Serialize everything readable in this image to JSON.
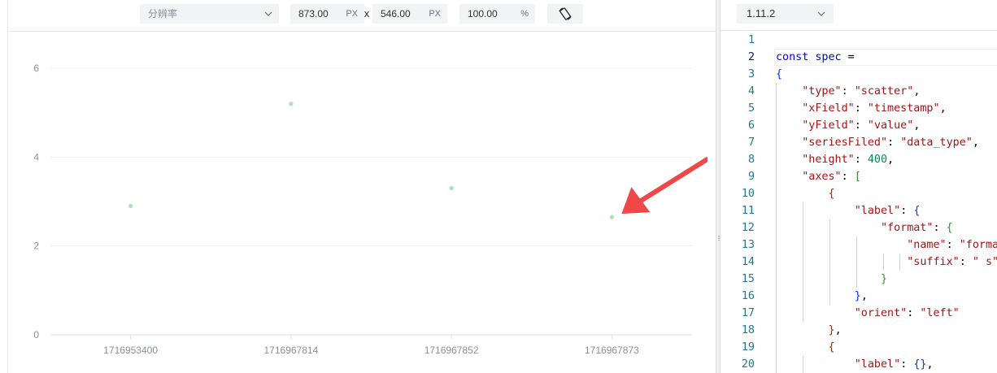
{
  "toolbar": {
    "resolution_placeholder": "分辨率",
    "width_value": "873.00",
    "width_unit": "PX",
    "separator": "x",
    "height_value": "546.00",
    "height_unit": "PX",
    "zoom_value": "100.00",
    "zoom_unit": "%",
    "rotate_icon": "rotate-screen-icon"
  },
  "chart_data": {
    "type": "scatter",
    "x": [
      "1716953400",
      "1716967814",
      "1716967852",
      "1716967873"
    ],
    "y": [
      2.9,
      5.2,
      3.3,
      2.65
    ],
    "y_ticks": [
      0,
      2,
      4,
      6
    ],
    "ylim": [
      0,
      6
    ],
    "grid": true,
    "point_color": "#a8e2b9",
    "annotation": {
      "type": "arrow",
      "color": "#f04848",
      "points_to_index": 3
    }
  },
  "editor": {
    "version": "1.11.2",
    "lines": [
      {
        "n": "1",
        "tokens": []
      },
      {
        "n": "2",
        "tokens": [
          [
            "kw",
            "const"
          ],
          [
            "pn",
            " "
          ],
          [
            "id",
            "spec"
          ],
          [
            "pn",
            " ="
          ]
        ]
      },
      {
        "n": "3",
        "tokens": [
          [
            "b1",
            "{"
          ]
        ]
      },
      {
        "n": "4",
        "tokens": [
          [
            "pn",
            "    "
          ],
          [
            "str",
            "\"type\""
          ],
          [
            "pn",
            ": "
          ],
          [
            "str",
            "\"scatter\""
          ],
          [
            "pn",
            ","
          ]
        ]
      },
      {
        "n": "5",
        "tokens": [
          [
            "pn",
            "    "
          ],
          [
            "str",
            "\"xField\""
          ],
          [
            "pn",
            ": "
          ],
          [
            "str",
            "\"timestamp\""
          ],
          [
            "pn",
            ","
          ]
        ]
      },
      {
        "n": "6",
        "tokens": [
          [
            "pn",
            "    "
          ],
          [
            "str",
            "\"yField\""
          ],
          [
            "pn",
            ": "
          ],
          [
            "str",
            "\"value\""
          ],
          [
            "pn",
            ","
          ]
        ]
      },
      {
        "n": "7",
        "tokens": [
          [
            "pn",
            "    "
          ],
          [
            "str",
            "\"seriesFiled\""
          ],
          [
            "pn",
            ": "
          ],
          [
            "str",
            "\"data_type\""
          ],
          [
            "pn",
            ","
          ]
        ]
      },
      {
        "n": "8",
        "tokens": [
          [
            "pn",
            "    "
          ],
          [
            "str",
            "\"height\""
          ],
          [
            "pn",
            ": "
          ],
          [
            "num",
            "400"
          ],
          [
            "pn",
            ","
          ]
        ]
      },
      {
        "n": "9",
        "tokens": [
          [
            "pn",
            "    "
          ],
          [
            "str",
            "\"axes\""
          ],
          [
            "pn",
            ": "
          ],
          [
            "b2",
            "["
          ]
        ]
      },
      {
        "n": "10",
        "tokens": [
          [
            "pn",
            "        "
          ],
          [
            "b3",
            "{"
          ]
        ]
      },
      {
        "n": "11",
        "tokens": [
          [
            "pn",
            "            "
          ],
          [
            "str",
            "\"label\""
          ],
          [
            "pn",
            ": "
          ],
          [
            "b1",
            "{"
          ]
        ]
      },
      {
        "n": "12",
        "tokens": [
          [
            "pn",
            "                "
          ],
          [
            "str",
            "\"format\""
          ],
          [
            "pn",
            ": "
          ],
          [
            "b2",
            "{"
          ]
        ]
      },
      {
        "n": "13",
        "tokens": [
          [
            "pn",
            "                    "
          ],
          [
            "str",
            "\"name\""
          ],
          [
            "pn",
            ": "
          ],
          [
            "str",
            "\"formatT"
          ]
        ]
      },
      {
        "n": "14",
        "tokens": [
          [
            "pn",
            "                    "
          ],
          [
            "str",
            "\"suffix\""
          ],
          [
            "pn",
            ": "
          ],
          [
            "str",
            "\" s\""
          ]
        ]
      },
      {
        "n": "15",
        "tokens": [
          [
            "pn",
            "                "
          ],
          [
            "b2",
            "}"
          ]
        ]
      },
      {
        "n": "16",
        "tokens": [
          [
            "pn",
            "            "
          ],
          [
            "b1",
            "}"
          ],
          [
            "pn",
            ","
          ]
        ]
      },
      {
        "n": "17",
        "tokens": [
          [
            "pn",
            "            "
          ],
          [
            "str",
            "\"orient\""
          ],
          [
            "pn",
            ": "
          ],
          [
            "str",
            "\"left\""
          ]
        ]
      },
      {
        "n": "18",
        "tokens": [
          [
            "pn",
            "        "
          ],
          [
            "b3",
            "}"
          ],
          [
            "pn",
            ","
          ]
        ]
      },
      {
        "n": "19",
        "tokens": [
          [
            "pn",
            "        "
          ],
          [
            "b3",
            "{"
          ]
        ]
      },
      {
        "n": "20",
        "tokens": [
          [
            "pn",
            "            "
          ],
          [
            "str",
            "\"label\""
          ],
          [
            "pn",
            ": "
          ],
          [
            "b1",
            "{}"
          ],
          [
            "pn",
            ","
          ]
        ]
      }
    ]
  }
}
